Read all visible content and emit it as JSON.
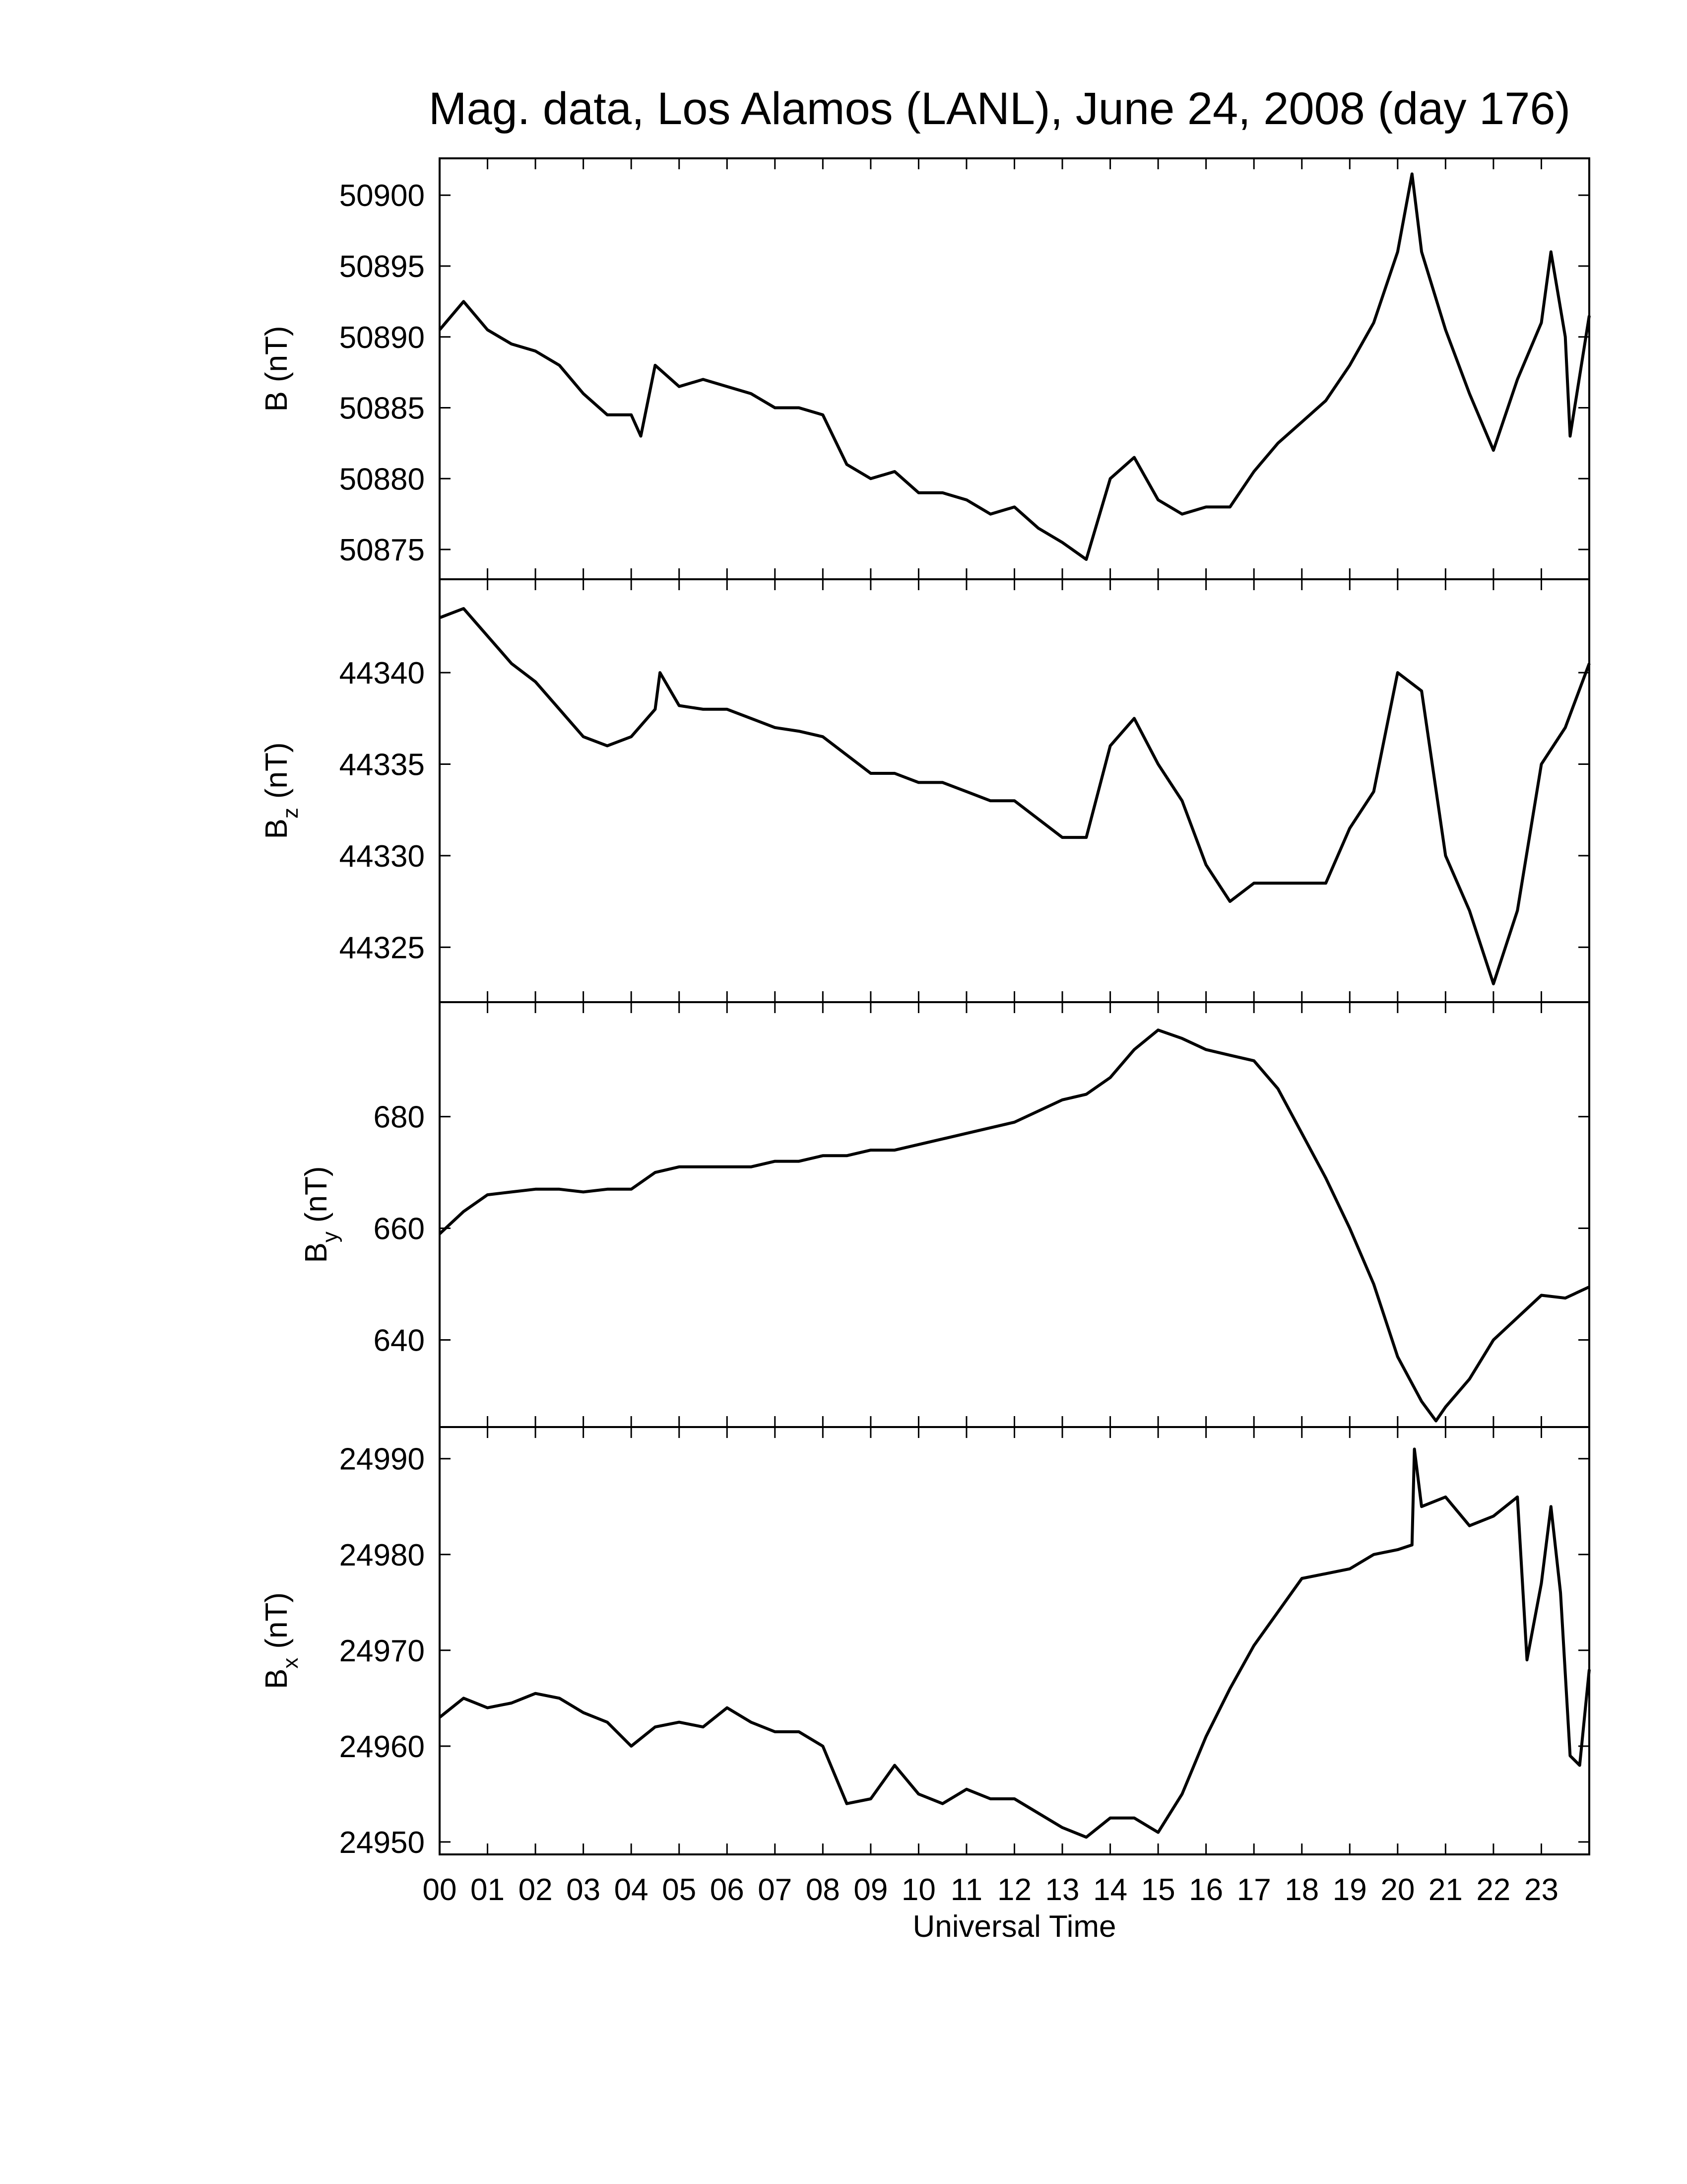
{
  "chart_data": [
    {
      "type": "line",
      "title": "Mag. data, Los Alamos (LANL), June 24, 2008 (day 176)",
      "ylabel": "B",
      "ylabel_unit": "(nT)",
      "color": "#000000",
      "xlim": [
        0,
        24
      ],
      "xticks": [
        {
          "value": 0,
          "label": "00"
        },
        {
          "value": 1,
          "label": "01"
        },
        {
          "value": 2,
          "label": "02"
        },
        {
          "value": 3,
          "label": "03"
        },
        {
          "value": 4,
          "label": "04"
        },
        {
          "value": 5,
          "label": "05"
        },
        {
          "value": 6,
          "label": "06"
        },
        {
          "value": 7,
          "label": "07"
        },
        {
          "value": 8,
          "label": "08"
        },
        {
          "value": 9,
          "label": "09"
        },
        {
          "value": 10,
          "label": "10"
        },
        {
          "value": 11,
          "label": "11"
        },
        {
          "value": 12,
          "label": "12"
        },
        {
          "value": 13,
          "label": "13"
        },
        {
          "value": 14,
          "label": "14"
        },
        {
          "value": 15,
          "label": "15"
        },
        {
          "value": 16,
          "label": "16"
        },
        {
          "value": 17,
          "label": "17"
        },
        {
          "value": 18,
          "label": "18"
        },
        {
          "value": 19,
          "label": "19"
        },
        {
          "value": 20,
          "label": "20"
        },
        {
          "value": 21,
          "label": "21"
        },
        {
          "value": 22,
          "label": "22"
        },
        {
          "value": 23,
          "label": "23"
        }
      ],
      "ylim": [
        50872.9,
        50902.6
      ],
      "yticks": [
        50875,
        50880,
        50885,
        50890,
        50895,
        50900
      ],
      "x": [
        0,
        0.5,
        1,
        1.5,
        2,
        2.5,
        3,
        3.5,
        4,
        4.2,
        4.5,
        5,
        5.5,
        6,
        6.5,
        7,
        7.5,
        8,
        8.5,
        9,
        9.5,
        10,
        10.5,
        11,
        11.5,
        12,
        12.5,
        13,
        13.5,
        14,
        14.5,
        15,
        15.5,
        16,
        16.5,
        17,
        17.5,
        18,
        18.5,
        19,
        19.5,
        20,
        20.3,
        20.5,
        21,
        21.5,
        22,
        22.5,
        23,
        23.2,
        23.5,
        23.6,
        24
      ],
      "values": [
        50890.5,
        50892.5,
        50890.5,
        50889.5,
        50889,
        50888,
        50886,
        50884.5,
        50884.5,
        50883,
        50888,
        50886.5,
        50887,
        50886.5,
        50886,
        50885,
        50885,
        50884.5,
        50881,
        50880,
        50880.5,
        50879,
        50879,
        50878.5,
        50877.5,
        50878,
        50876.5,
        50875.5,
        50874.3,
        50880,
        50881.5,
        50878.5,
        50877.5,
        50878,
        50878,
        50880.5,
        50882.5,
        50884,
        50885.5,
        50888,
        50891,
        50896,
        50901.5,
        50896,
        50890.5,
        50886,
        50882,
        50887,
        50891,
        50896,
        50890,
        50883,
        50891.5
      ]
    },
    {
      "type": "line",
      "ylabel": "B",
      "ylabel_sub": "z",
      "ylabel_unit": "(nT)",
      "color": "#000000",
      "xlim": [
        0,
        24
      ],
      "xticks": [
        0,
        1,
        2,
        3,
        4,
        5,
        6,
        7,
        8,
        9,
        10,
        11,
        12,
        13,
        14,
        15,
        16,
        17,
        18,
        19,
        20,
        21,
        22,
        23
      ],
      "ylim": [
        44322.0,
        44345.1
      ],
      "yticks": [
        44325,
        44330,
        44335,
        44340
      ],
      "x": [
        0,
        0.5,
        1,
        1.5,
        2,
        2.5,
        3,
        3.5,
        4,
        4.5,
        4.6,
        5,
        5.5,
        6,
        6.5,
        7,
        7.5,
        8,
        8.5,
        9,
        9.5,
        10,
        10.5,
        11,
        11.5,
        12,
        12.5,
        13,
        13.5,
        14,
        14.5,
        15,
        15.5,
        16,
        16.5,
        17,
        17.5,
        18,
        18.5,
        19,
        19.5,
        20,
        20.5,
        21,
        21.5,
        22,
        22.5,
        23,
        23.5,
        24
      ],
      "values": [
        44343,
        44343.5,
        44342,
        44340.5,
        44339.5,
        44338,
        44336.5,
        44336,
        44336.5,
        44338,
        44340,
        44338.2,
        44338,
        44338,
        44337.5,
        44337,
        44336.8,
        44336.5,
        44335.5,
        44334.5,
        44334.5,
        44334,
        44334,
        44333.5,
        44333,
        44333,
        44332,
        44331,
        44331,
        44336,
        44337.5,
        44335,
        44333,
        44329.5,
        44327.5,
        44328.5,
        44328.5,
        44328.5,
        44328.5,
        44331.5,
        44333.5,
        44340,
        44339,
        44330,
        44327,
        44323,
        44327,
        44335,
        44337,
        44340.5
      ]
    },
    {
      "type": "line",
      "ylabel": "B",
      "ylabel_sub": "y",
      "ylabel_unit": "(nT)",
      "color": "#000000",
      "xlim": [
        0,
        24
      ],
      "xticks": [
        0,
        1,
        2,
        3,
        4,
        5,
        6,
        7,
        8,
        9,
        10,
        11,
        12,
        13,
        14,
        15,
        16,
        17,
        18,
        19,
        20,
        21,
        22,
        23
      ],
      "ylim": [
        624.4,
        700.5
      ],
      "yticks": [
        640,
        660,
        680
      ],
      "x": [
        0,
        0.5,
        1,
        1.5,
        2,
        2.5,
        3,
        3.5,
        4,
        4.5,
        5,
        5.5,
        6,
        6.5,
        7,
        7.5,
        8,
        8.5,
        9,
        9.5,
        10,
        10.5,
        11,
        11.5,
        12,
        12.5,
        13,
        13.5,
        14,
        14.5,
        15,
        15.5,
        16,
        16.5,
        17,
        17.5,
        18,
        18.5,
        19,
        19.5,
        20,
        20.5,
        20.8,
        21,
        21.5,
        22,
        22.5,
        23,
        23.5,
        24
      ],
      "values": [
        659,
        663,
        666,
        666.5,
        667,
        667,
        666.5,
        667,
        667,
        670,
        671,
        671,
        671,
        671,
        672,
        672,
        673,
        673,
        674,
        674,
        675,
        676,
        677,
        678,
        679,
        681,
        683,
        684,
        687,
        692,
        695.5,
        694,
        692,
        691,
        690,
        685,
        677,
        669,
        660,
        650,
        637,
        629,
        625.5,
        628,
        633,
        640,
        644,
        648,
        647.5,
        649.5
      ]
    },
    {
      "type": "line",
      "ylabel": "B",
      "ylabel_sub": "x",
      "ylabel_unit": "(nT)",
      "xlabel": "Universal Time",
      "color": "#000000",
      "xlim": [
        0,
        24
      ],
      "xticks": [
        {
          "value": 0,
          "label": "00"
        },
        {
          "value": 1,
          "label": "01"
        },
        {
          "value": 2,
          "label": "02"
        },
        {
          "value": 3,
          "label": "03"
        },
        {
          "value": 4,
          "label": "04"
        },
        {
          "value": 5,
          "label": "05"
        },
        {
          "value": 6,
          "label": "06"
        },
        {
          "value": 7,
          "label": "07"
        },
        {
          "value": 8,
          "label": "08"
        },
        {
          "value": 9,
          "label": "09"
        },
        {
          "value": 10,
          "label": "10"
        },
        {
          "value": 11,
          "label": "11"
        },
        {
          "value": 12,
          "label": "12"
        },
        {
          "value": 13,
          "label": "13"
        },
        {
          "value": 14,
          "label": "14"
        },
        {
          "value": 15,
          "label": "15"
        },
        {
          "value": 16,
          "label": "16"
        },
        {
          "value": 17,
          "label": "17"
        },
        {
          "value": 18,
          "label": "18"
        },
        {
          "value": 19,
          "label": "19"
        },
        {
          "value": 20,
          "label": "20"
        },
        {
          "value": 21,
          "label": "21"
        },
        {
          "value": 22,
          "label": "22"
        },
        {
          "value": 23,
          "label": "23"
        }
      ],
      "ylim": [
        24948.7,
        24993.3
      ],
      "yticks": [
        24950,
        24960,
        24970,
        24980,
        24990
      ],
      "x": [
        0,
        0.5,
        1,
        1.5,
        2,
        2.5,
        3,
        3.5,
        4,
        4.5,
        5,
        5.5,
        6,
        6.5,
        7,
        7.5,
        8,
        8.5,
        9,
        9.5,
        10,
        10.5,
        11,
        11.5,
        12,
        12.5,
        13,
        13.5,
        14,
        14.5,
        15,
        15.5,
        16,
        16.5,
        17,
        17.5,
        18,
        18.5,
        19,
        19.5,
        20,
        20.3,
        20.35,
        20.5,
        21,
        21.5,
        22,
        22.5,
        22.7,
        23,
        23.2,
        23.4,
        23.6,
        23.8,
        24
      ],
      "values": [
        24963,
        24965,
        24964,
        24964.5,
        24965.5,
        24965,
        24963.5,
        24962.5,
        24960,
        24962,
        24962.5,
        24962,
        24964,
        24962.5,
        24961.5,
        24961.5,
        24960,
        24954,
        24954.5,
        24958,
        24955,
        24954,
        24955.5,
        24954.5,
        24954.5,
        24953,
        24951.5,
        24950.5,
        24952.5,
        24952.5,
        24951,
        24955,
        24961,
        24966,
        24970.5,
        24974,
        24977.5,
        24978,
        24978.5,
        24980,
        24980.5,
        24981,
        24991,
        24985,
        24986,
        24983,
        24984,
        24986,
        24969,
        24977,
        24985,
        24976,
        24959,
        24958,
        24968
      ]
    }
  ]
}
